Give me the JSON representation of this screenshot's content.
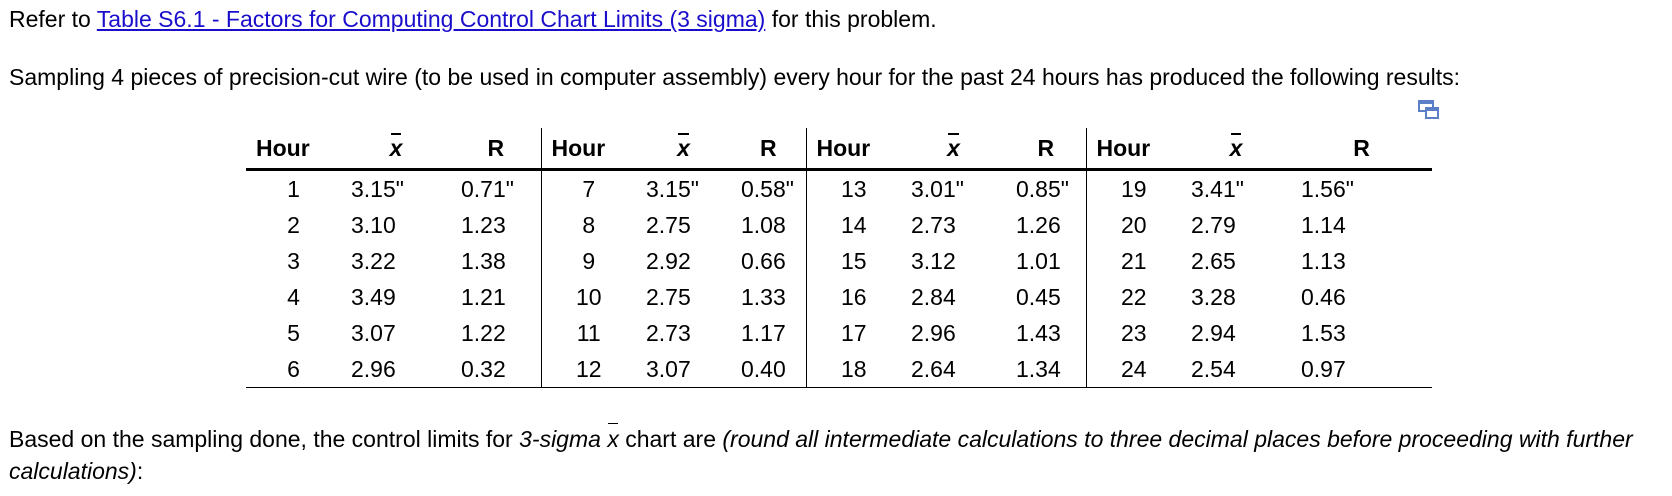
{
  "intro": {
    "prefix": "Refer to ",
    "link_text": "Table S6.1 - Factors for Computing Control Chart Limits (3 sigma)",
    "suffix": " for this problem."
  },
  "description": "Sampling 4 pieces of precision-cut wire (to be used in computer assembly) every hour for the past 24 hours has produced the following results:",
  "table": {
    "headers": {
      "hour": "Hour",
      "xbar": "x",
      "range": "R"
    },
    "rows": [
      [
        {
          "hour": "1",
          "x": "3.15\"",
          "r": "0.71\""
        },
        {
          "hour": "7",
          "x": "3.15\"",
          "r": "0.58\""
        },
        {
          "hour": "13",
          "x": "3.01\"",
          "r": "0.85\""
        },
        {
          "hour": "19",
          "x": "3.41\"",
          "r": "1.56\""
        }
      ],
      [
        {
          "hour": "2",
          "x": "3.10",
          "r": "1.23"
        },
        {
          "hour": "8",
          "x": "2.75",
          "r": "1.08"
        },
        {
          "hour": "14",
          "x": "2.73",
          "r": "1.26"
        },
        {
          "hour": "20",
          "x": "2.79",
          "r": "1.14"
        }
      ],
      [
        {
          "hour": "3",
          "x": "3.22",
          "r": "1.38"
        },
        {
          "hour": "9",
          "x": "2.92",
          "r": "0.66"
        },
        {
          "hour": "15",
          "x": "3.12",
          "r": "1.01"
        },
        {
          "hour": "21",
          "x": "2.65",
          "r": "1.13"
        }
      ],
      [
        {
          "hour": "4",
          "x": "3.49",
          "r": "1.21"
        },
        {
          "hour": "10",
          "x": "2.75",
          "r": "1.33"
        },
        {
          "hour": "16",
          "x": "2.84",
          "r": "0.45"
        },
        {
          "hour": "22",
          "x": "3.28",
          "r": "0.46"
        }
      ],
      [
        {
          "hour": "5",
          "x": "3.07",
          "r": "1.22"
        },
        {
          "hour": "11",
          "x": "2.73",
          "r": "1.17"
        },
        {
          "hour": "17",
          "x": "2.96",
          "r": "1.43"
        },
        {
          "hour": "23",
          "x": "2.94",
          "r": "1.53"
        }
      ],
      [
        {
          "hour": "6",
          "x": "2.96",
          "r": "0.32"
        },
        {
          "hour": "12",
          "x": "3.07",
          "r": "0.40"
        },
        {
          "hour": "18",
          "x": "2.64",
          "r": "1.34"
        },
        {
          "hour": "24",
          "x": "2.54",
          "r": "0.97"
        }
      ]
    ]
  },
  "question": {
    "part1": "Based on the sampling done, the control limits for ",
    "part2_italic": "3-sigma ",
    "xbar": "x",
    "part3": " chart are ",
    "part4_italic": "(round all intermediate calculations to three decimal places before proceeding with further calculations)",
    "part5": ":"
  },
  "icons": {
    "popout": "popout-window-icon",
    "popout_color": "#5b7fc7"
  }
}
